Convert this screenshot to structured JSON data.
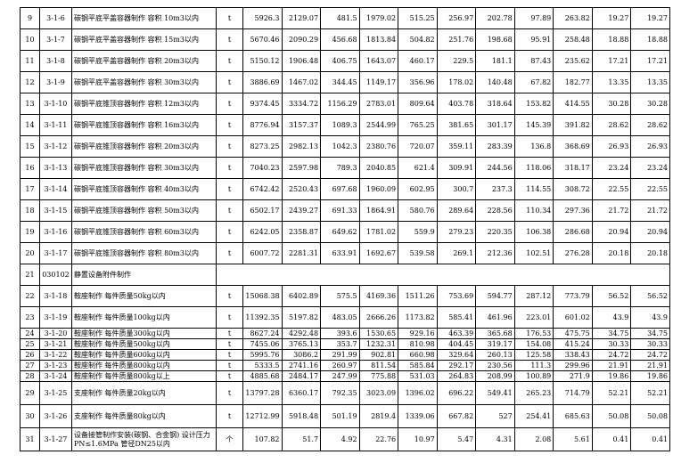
{
  "table": {
    "rows": [
      {
        "no": "9",
        "code": "3-1-6",
        "name": "碳钢平底平盖容器制作 容积 10m3以内",
        "unit": "t",
        "values": [
          5926.3,
          2129.07,
          481.5,
          1979.02,
          515.25,
          256.97,
          202.78,
          97.89,
          263.82,
          19.27,
          19.27
        ]
      },
      {
        "no": "10",
        "code": "3-1-7",
        "name": "碳钢平底平盖容器制作 容积 15m3以内",
        "unit": "t",
        "values": [
          5670.46,
          2090.29,
          456.68,
          1813.84,
          504.82,
          251.76,
          198.68,
          95.91,
          258.48,
          18.88,
          18.88
        ]
      },
      {
        "no": "11",
        "code": "3-1-8",
        "name": "碳钢平底平盖容器制作 容积 20m3以内",
        "unit": "t",
        "values": [
          5150.12,
          1906.48,
          406.75,
          1643.07,
          460.17,
          229.5,
          181.1,
          87.43,
          235.62,
          17.21,
          17.21
        ]
      },
      {
        "no": "12",
        "code": "3-1-9",
        "name": "碳钢平底平盖容器制作 容积 30m3以内",
        "unit": "t",
        "values": [
          3886.69,
          1467.02,
          344.45,
          1149.17,
          356.96,
          178.02,
          140.48,
          67.82,
          182.77,
          13.35,
          13.35
        ]
      },
      {
        "no": "13",
        "code": "3-1-10",
        "name": "碳钢平底锥顶容器制作 容积 12m3以内",
        "unit": "t",
        "values": [
          9374.45,
          3334.72,
          1156.29,
          2783.01,
          809.64,
          403.78,
          318.64,
          153.82,
          414.55,
          30.28,
          30.28
        ]
      },
      {
        "no": "14",
        "code": "3-1-11",
        "name": "碳钢平底锥顶容器制作 容积 16m3以内",
        "unit": "t",
        "values": [
          8776.94,
          3157.37,
          1089.3,
          2544.99,
          765.25,
          381.65,
          301.17,
          145.39,
          391.82,
          28.62,
          28.62
        ]
      },
      {
        "no": "15",
        "code": "3-1-12",
        "name": "碳钢平底锥顶容器制作 容积 20m3以内",
        "unit": "t",
        "values": [
          8273.25,
          2982.13,
          1042.3,
          2380.76,
          720.07,
          359.11,
          283.39,
          136.8,
          368.69,
          26.93,
          26.93
        ]
      },
      {
        "no": "16",
        "code": "3-1-13",
        "name": "碳钢平底锥顶容器制作 容积 30m3以内",
        "unit": "t",
        "values": [
          7040.23,
          2597.98,
          789.3,
          2040.85,
          621.4,
          309.91,
          244.56,
          118.06,
          318.17,
          23.24,
          23.24
        ]
      },
      {
        "no": "17",
        "code": "3-1-14",
        "name": "碳钢平底锥顶容器制作 容积 40m3以内",
        "unit": "t",
        "values": [
          6742.42,
          2520.43,
          697.68,
          1960.09,
          602.95,
          300.7,
          237.3,
          114.55,
          308.72,
          22.55,
          22.55
        ]
      },
      {
        "no": "18",
        "code": "3-1-15",
        "name": "碳钢平底锥顶容器制作 容积 50m3以内",
        "unit": "t",
        "values": [
          6502.17,
          2439.27,
          691.33,
          1864.91,
          580.76,
          289.64,
          228.56,
          110.34,
          297.36,
          21.72,
          21.72
        ]
      },
      {
        "no": "19",
        "code": "3-1-16",
        "name": "碳钢平底锥顶容器制作 容积 60m3以内",
        "unit": "t",
        "values": [
          6242.05,
          2358.87,
          649.62,
          1781.02,
          559.9,
          279.23,
          220.35,
          106.38,
          286.68,
          20.94,
          20.94
        ]
      },
      {
        "no": "20",
        "code": "3-1-17",
        "name": "碳钢平底锥顶容器制作 容积 80m3以内",
        "unit": "t",
        "values": [
          6007.72,
          2281.31,
          633.91,
          1692.67,
          539.58,
          269.1,
          212.36,
          102.51,
          276.28,
          20.18,
          20.18
        ]
      },
      {
        "no": "21",
        "code": "030102",
        "name": "静置设备附件制作"
      },
      {
        "no": "22",
        "code": "3-1-18",
        "name": "鞍座制作 每件质量50kg以内",
        "unit": "t",
        "values": [
          15068.38,
          6402.89,
          575.5,
          4169.36,
          1511.26,
          753.69,
          594.77,
          287.12,
          773.79,
          56.52,
          56.52
        ]
      },
      {
        "no": "23",
        "code": "3-1-19",
        "name": "鞍座制作 每件质量100kg以内",
        "unit": "t",
        "values": [
          11392.35,
          5197.82,
          483.05,
          2666.26,
          1173.82,
          585.41,
          461.96,
          223.01,
          601.02,
          43.9,
          43.9
        ]
      },
      {
        "no": "24",
        "code": "3-1-20",
        "name": "鞍座制作 每件质量300kg以内",
        "unit": "t",
        "values": [
          8627.24,
          4292.48,
          393.6,
          1530.65,
          929.16,
          463.39,
          365.68,
          176.53,
          475.75,
          34.75,
          34.75
        ]
      },
      {
        "no": "25",
        "code": "3-1-21",
        "name": "鞍座制作 每件质量500kg以内",
        "unit": "t",
        "values": [
          7455.06,
          3765.13,
          353.7,
          1232.31,
          810.98,
          404.45,
          319.17,
          154.08,
          415.24,
          30.33,
          30.33
        ]
      },
      {
        "no": "26",
        "code": "3-1-22",
        "name": "鞍座制作 每件质量600kg以内",
        "unit": "t",
        "values": [
          5995.76,
          3086.2,
          291.99,
          902.81,
          660.98,
          329.64,
          260.13,
          125.58,
          338.43,
          24.72,
          24.72
        ]
      },
      {
        "no": "27",
        "code": "3-1-23",
        "name": "鞍座制作 每件质量800kg以内",
        "unit": "t",
        "values": [
          5333.5,
          2741.16,
          260.97,
          811.54,
          585.84,
          292.17,
          230.56,
          111.3,
          299.96,
          21.91,
          21.91
        ]
      },
      {
        "no": "28",
        "code": "3-1-24",
        "name": "鞍座制作 每件质量800kg以上",
        "unit": "t",
        "values": [
          4885.68,
          2484.17,
          247.99,
          775.88,
          531.03,
          264.83,
          208.99,
          100.89,
          271.9,
          19.86,
          19.86
        ]
      },
      {
        "no": "29",
        "code": "3-1-25",
        "name": "支座制作 每件质量20kg以内",
        "unit": "t",
        "values": [
          13797.28,
          6360.17,
          792.35,
          3023.09,
          1396.02,
          696.22,
          549.41,
          265.23,
          714.79,
          52.21,
          52.21
        ]
      },
      {
        "no": "30",
        "code": "3-1-26",
        "name": "支座制作 每件质量80kg以内",
        "unit": "t",
        "values": [
          12712.99,
          5918.48,
          501.19,
          2819.4,
          1339.06,
          667.82,
          527,
          254.41,
          685.63,
          50.08,
          50.08
        ]
      },
      {
        "no": "31",
        "code": "3-1-27",
        "name": "设备接管制作安装(碳钢、合金钢) 设计压力PN≤1.6MPa 管径DN25以内",
        "unit": "个",
        "values": [
          107.82,
          51.7,
          4.92,
          22.76,
          10.97,
          5.47,
          4.31,
          2.08,
          5.61,
          0.41,
          0.41
        ]
      }
    ]
  }
}
